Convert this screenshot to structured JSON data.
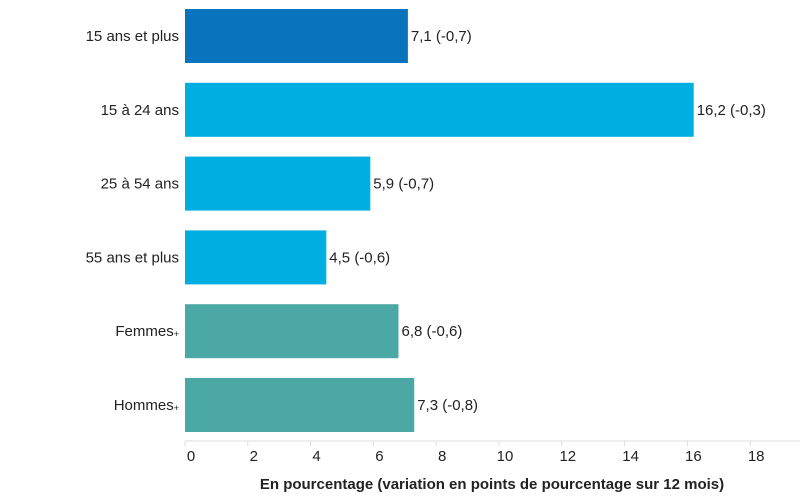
{
  "chart_data": {
    "type": "bar",
    "orientation": "horizontal",
    "categories": [
      {
        "text": "15 ans et plus",
        "sup": ""
      },
      {
        "text": "15 à 24 ans",
        "sup": ""
      },
      {
        "text": "25 à 54 ans",
        "sup": ""
      },
      {
        "text": "55 ans et plus",
        "sup": ""
      },
      {
        "text": "Femmes",
        "sup": "+"
      },
      {
        "text": "Hommes",
        "sup": "+"
      }
    ],
    "values": [
      7.1,
      16.2,
      5.9,
      4.5,
      6.8,
      7.3
    ],
    "value_labels": [
      "7,1 (-0,7)",
      "16,2 (-0,3)",
      "5,9 (-0,7)",
      "4,5 (-0,6)",
      "6,8 (-0,6)",
      "7,3 (-0,8)"
    ],
    "colors": [
      "#0a73be",
      "#00aee1",
      "#00aee1",
      "#00aee1",
      "#4ba8a4",
      "#4ba8a4"
    ],
    "xlim": [
      0,
      20
    ],
    "xticks": [
      0,
      2,
      4,
      6,
      8,
      10,
      12,
      14,
      16,
      18
    ],
    "xtick_labels": [
      "0",
      "2",
      "4",
      "6",
      "8",
      "10",
      "12",
      "14",
      "16",
      "18"
    ],
    "xlabel": "En pourcentage (variation en points de pourcentage sur 12 mois)",
    "grid": false,
    "axis_color": "#dddddd"
  }
}
